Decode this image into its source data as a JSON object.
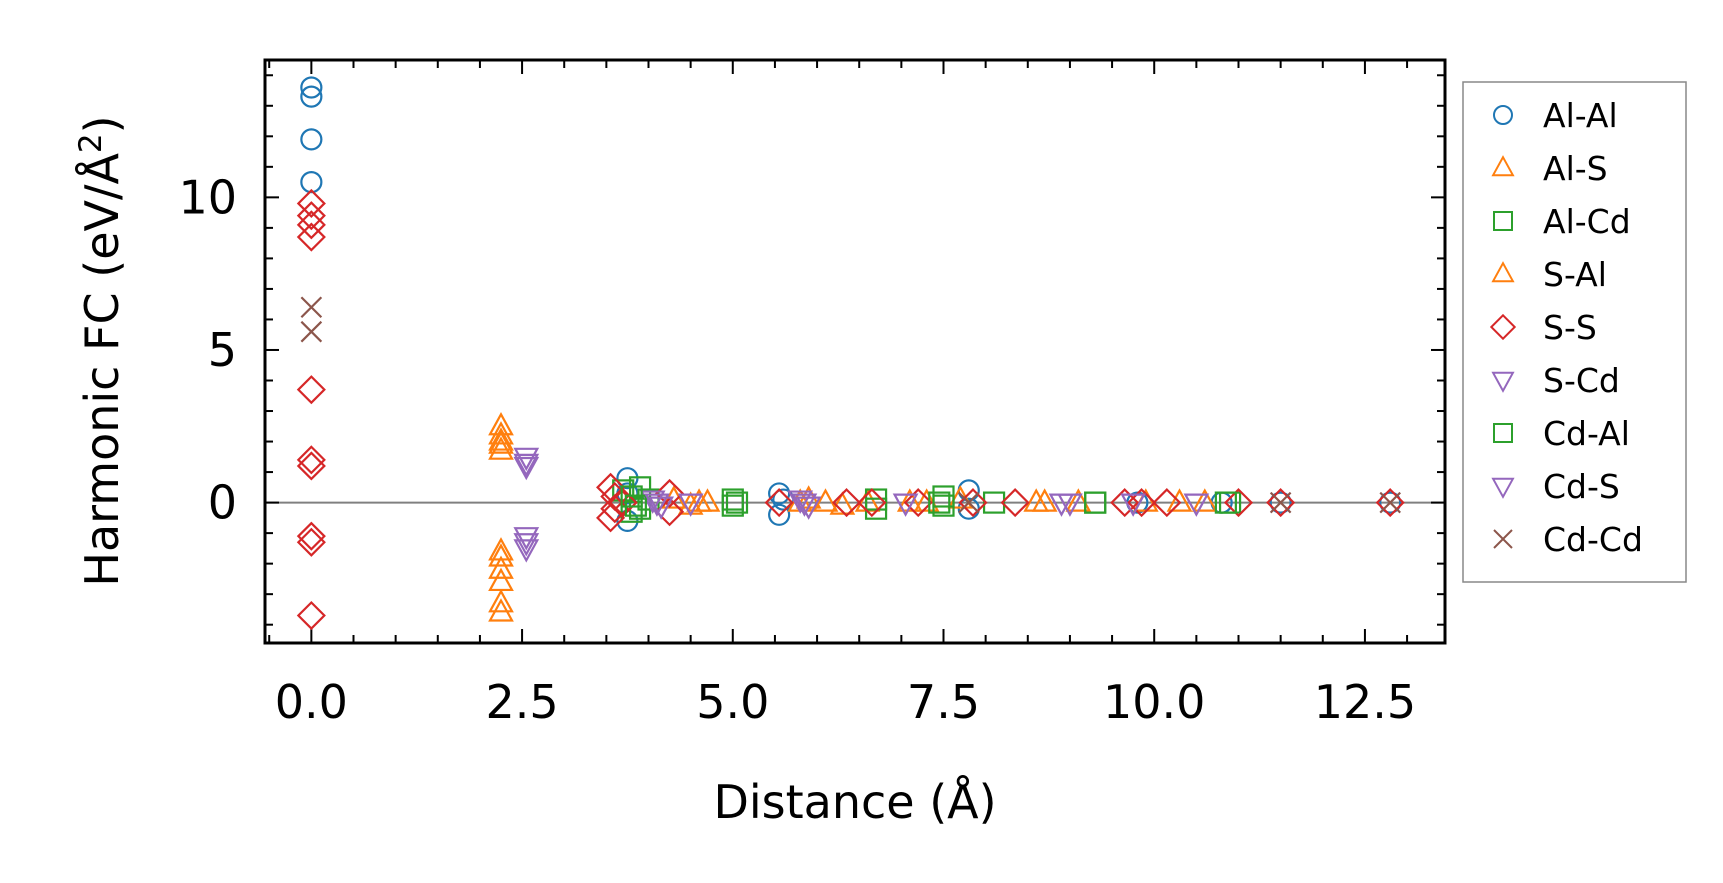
{
  "chart_data": {
    "type": "scatter",
    "title": "",
    "xlabel": "Distance (Å)",
    "ylabel_main": "Harmonic FC (eV/Å",
    "ylabel_sup": "2",
    "ylabel_close": ")",
    "xlim": [
      -0.55,
      13.45
    ],
    "ylim": [
      -4.6,
      14.5
    ],
    "xticks": [
      0.0,
      2.5,
      5.0,
      7.5,
      10.0,
      12.5
    ],
    "xtick_labels": [
      "0.0",
      "2.5",
      "5.0",
      "7.5",
      "10.0",
      "12.5"
    ],
    "yticks": [
      0,
      5,
      10
    ],
    "ytick_labels": [
      "0",
      "5",
      "10"
    ],
    "zero_line": 0,
    "legend_position": "outside-right",
    "series": [
      {
        "name": "Al-Al",
        "marker": "circle",
        "color": "#1f77b4",
        "points": [
          [
            0.0,
            13.6
          ],
          [
            0.0,
            13.3
          ],
          [
            0.0,
            11.9
          ],
          [
            0.0,
            10.5
          ],
          [
            3.75,
            0.8
          ],
          [
            3.75,
            -0.6
          ],
          [
            3.75,
            0.3
          ],
          [
            5.55,
            0.3
          ],
          [
            5.55,
            -0.4
          ],
          [
            5.6,
            0.1
          ],
          [
            7.8,
            0.4
          ],
          [
            7.8,
            -0.2
          ],
          [
            9.8,
            0.0
          ],
          [
            10.8,
            0.0
          ],
          [
            11.5,
            0.0
          ],
          [
            12.8,
            0.0
          ]
        ]
      },
      {
        "name": "Al-S",
        "marker": "triangle-up",
        "color": "#ff7f0e",
        "points": [
          [
            2.25,
            2.5
          ],
          [
            2.25,
            2.2
          ],
          [
            2.25,
            1.9
          ],
          [
            2.25,
            -1.8
          ],
          [
            2.25,
            -2.2
          ],
          [
            2.25,
            -2.6
          ],
          [
            4.3,
            0.1
          ],
          [
            4.5,
            -0.1
          ],
          [
            4.7,
            0.0
          ],
          [
            5.9,
            0.1
          ],
          [
            6.1,
            0.0
          ],
          [
            6.3,
            -0.1
          ],
          [
            6.6,
            0.0
          ],
          [
            7.3,
            0.0
          ],
          [
            7.7,
            0.1
          ],
          [
            8.6,
            0.0
          ],
          [
            9.1,
            0.0
          ],
          [
            9.9,
            0.0
          ],
          [
            10.6,
            0.0
          ]
        ]
      },
      {
        "name": "Al-Cd",
        "marker": "square",
        "color": "#2ca02c",
        "points": [
          [
            3.7,
            0.4
          ],
          [
            3.8,
            -0.3
          ],
          [
            3.9,
            0.5
          ],
          [
            3.9,
            -0.2
          ],
          [
            4.0,
            0.1
          ],
          [
            5.0,
            0.1
          ],
          [
            5.0,
            -0.1
          ],
          [
            6.7,
            0.1
          ],
          [
            6.7,
            -0.2
          ],
          [
            7.5,
            0.2
          ],
          [
            7.5,
            -0.1
          ],
          [
            8.1,
            0.0
          ],
          [
            9.3,
            0.0
          ],
          [
            10.9,
            0.0
          ]
        ]
      },
      {
        "name": "S-Al",
        "marker": "triangle-up",
        "color": "#ff7f0e",
        "points": [
          [
            2.25,
            2.0
          ],
          [
            2.25,
            1.7
          ],
          [
            2.25,
            -1.6
          ],
          [
            2.25,
            -3.3
          ],
          [
            2.25,
            -3.6
          ],
          [
            4.6,
            0.0
          ],
          [
            5.8,
            0.0
          ],
          [
            7.1,
            0.0
          ],
          [
            8.7,
            0.0
          ],
          [
            10.3,
            0.0
          ]
        ]
      },
      {
        "name": "S-S",
        "marker": "diamond",
        "color": "#d62728",
        "points": [
          [
            0.0,
            9.8
          ],
          [
            0.0,
            9.4
          ],
          [
            0.0,
            9.1
          ],
          [
            0.0,
            8.7
          ],
          [
            0.0,
            3.7
          ],
          [
            0.0,
            1.4
          ],
          [
            0.0,
            1.2
          ],
          [
            0.0,
            -1.1
          ],
          [
            0.0,
            -1.3
          ],
          [
            0.0,
            -3.7
          ],
          [
            3.55,
            0.5
          ],
          [
            3.55,
            -0.5
          ],
          [
            3.6,
            0.2
          ],
          [
            3.6,
            -0.2
          ],
          [
            3.7,
            0.0
          ],
          [
            4.25,
            0.3
          ],
          [
            4.25,
            -0.3
          ],
          [
            5.55,
            0.0
          ],
          [
            6.35,
            0.0
          ],
          [
            6.65,
            0.0
          ],
          [
            7.2,
            0.0
          ],
          [
            7.85,
            0.0
          ],
          [
            8.35,
            0.0
          ],
          [
            9.65,
            0.0
          ],
          [
            9.85,
            0.0
          ],
          [
            10.15,
            0.0
          ],
          [
            11.0,
            0.0
          ],
          [
            11.5,
            0.0
          ],
          [
            12.8,
            0.0
          ]
        ]
      },
      {
        "name": "S-Cd",
        "marker": "triangle-down",
        "color": "#9467bd",
        "points": [
          [
            2.55,
            1.5
          ],
          [
            2.55,
            1.2
          ],
          [
            2.55,
            -1.1
          ],
          [
            2.55,
            -1.5
          ],
          [
            4.05,
            0.1
          ],
          [
            4.15,
            -0.1
          ],
          [
            4.5,
            0.0
          ],
          [
            5.8,
            0.1
          ],
          [
            5.9,
            -0.1
          ],
          [
            7.05,
            0.0
          ],
          [
            8.9,
            0.0
          ],
          [
            9.75,
            0.0
          ],
          [
            10.5,
            0.0
          ]
        ]
      },
      {
        "name": "Cd-Al",
        "marker": "square",
        "color": "#2ca02c",
        "points": [
          [
            3.8,
            0.2
          ],
          [
            3.85,
            -0.1
          ],
          [
            5.05,
            0.0
          ],
          [
            7.45,
            0.0
          ],
          [
            9.3,
            0.0
          ],
          [
            10.85,
            0.0
          ]
        ]
      },
      {
        "name": "Cd-S",
        "marker": "triangle-down",
        "color": "#9467bd",
        "points": [
          [
            2.55,
            1.3
          ],
          [
            2.55,
            -1.3
          ],
          [
            4.1,
            0.0
          ],
          [
            5.85,
            0.0
          ],
          [
            9.0,
            0.0
          ]
        ]
      },
      {
        "name": "Cd-Cd",
        "marker": "x",
        "color": "#8c564b",
        "points": [
          [
            0.0,
            6.4
          ],
          [
            0.0,
            5.6
          ],
          [
            7.8,
            0.0
          ],
          [
            11.5,
            0.0
          ],
          [
            12.8,
            0.0
          ]
        ]
      }
    ]
  }
}
